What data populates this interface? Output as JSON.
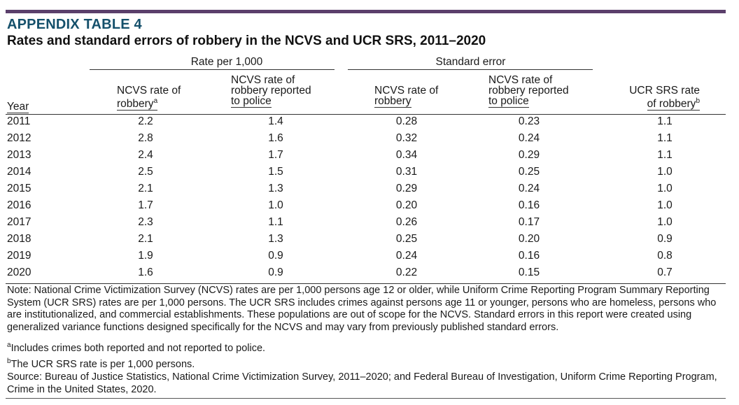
{
  "appendix_label": "APPENDIX TABLE 4",
  "title": "Rates and standard errors of robbery in the NCVS and UCR SRS, 2011–2020",
  "groups": {
    "rate": "Rate per 1,000",
    "se": "Standard error"
  },
  "columns": {
    "year": "Year",
    "rate_robbery_l1": "NCVS rate of",
    "rate_robbery_l2": "robbery",
    "rate_robbery_sup": "a",
    "rate_reported_l1": "NCVS rate of",
    "rate_reported_l2": "robbery reported",
    "rate_reported_l3": "to police",
    "se_robbery_l1": "NCVS rate of",
    "se_robbery_l2": "robbery",
    "se_reported_l1": "NCVS rate of",
    "se_reported_l2": "robbery reported",
    "se_reported_l3": "to police",
    "ucr_l1": "UCR SRS rate",
    "ucr_l2": "of robbery",
    "ucr_sup": "b"
  },
  "rows": [
    {
      "year": "2011",
      "v1": "2.2",
      "v2": "1.4",
      "v3": "0.28",
      "v4": "0.23",
      "v5": "1.1"
    },
    {
      "year": "2012",
      "v1": "2.8",
      "v2": "1.6",
      "v3": "0.32",
      "v4": "0.24",
      "v5": "1.1"
    },
    {
      "year": "2013",
      "v1": "2.4",
      "v2": "1.7",
      "v3": "0.34",
      "v4": "0.29",
      "v5": "1.1"
    },
    {
      "year": "2014",
      "v1": "2.5",
      "v2": "1.5",
      "v3": "0.31",
      "v4": "0.25",
      "v5": "1.0"
    },
    {
      "year": "2015",
      "v1": "2.1",
      "v2": "1.3",
      "v3": "0.29",
      "v4": "0.24",
      "v5": "1.0"
    },
    {
      "year": "2016",
      "v1": "1.7",
      "v2": "1.0",
      "v3": "0.20",
      "v4": "0.16",
      "v5": "1.0"
    },
    {
      "year": "2017",
      "v1": "2.3",
      "v2": "1.1",
      "v3": "0.26",
      "v4": "0.17",
      "v5": "1.0"
    },
    {
      "year": "2018",
      "v1": "2.1",
      "v2": "1.3",
      "v3": "0.25",
      "v4": "0.20",
      "v5": "0.9"
    },
    {
      "year": "2019",
      "v1": "1.9",
      "v2": "0.9",
      "v3": "0.24",
      "v4": "0.16",
      "v5": "0.8"
    },
    {
      "year": "2020",
      "v1": "1.6",
      "v2": "0.9",
      "v3": "0.22",
      "v4": "0.15",
      "v5": "0.7"
    }
  ],
  "note": "Note: National Crime Victimization Survey (NCVS) rates are per 1,000 persons age 12 or older, while Uniform Crime Reporting Program Summary Reporting System (UCR SRS) rates are per 1,000 persons. The UCR SRS includes crimes against persons age 11 or younger, persons who are homeless, persons who are institutionalized, and commercial establishments. These populations are out of scope for the NCVS. Standard errors in this report were created using generalized variance functions designed specifically for the NCVS and may vary from previously published standard errors.",
  "footnote_a_mark": "a",
  "footnote_a": "Includes crimes both reported and not reported to police.",
  "footnote_b_mark": "b",
  "footnote_b": "The UCR SRS rate is per 1,000 persons.",
  "source": "Source: Bureau of Justice Statistics, National Crime Victimization Survey, 2011–2020; and Federal Bureau of Investigation, Uniform Crime Reporting Program, Crime in the United States, 2020.",
  "colors": {
    "top_rule": "#5b3f6b",
    "appendix_label": "#15506b"
  }
}
